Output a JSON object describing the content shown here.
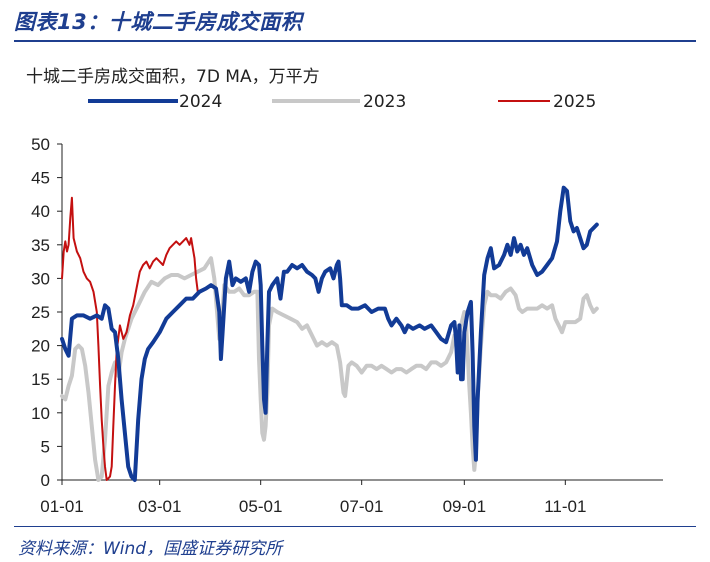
{
  "header": {
    "figure_title": "图表13：十城二手房成交面积"
  },
  "footer": {
    "source": "资料来源：Wind，国盛证券研究所"
  },
  "colors": {
    "s2024": "#123b96",
    "s2023": "#c8c8c8",
    "s2025": "#c41010",
    "brand": "#1f3f8f"
  },
  "chart_data": {
    "type": "line",
    "title": "十城二手房成交面积，7D MA，万平方",
    "xlabel": "",
    "ylabel": "",
    "ylim": [
      0,
      50
    ],
    "yticks": [
      0,
      5,
      10,
      15,
      20,
      25,
      30,
      35,
      40,
      45,
      50
    ],
    "xlim": [
      1,
      364
    ],
    "xticks": [
      {
        "day": 1,
        "label": "01-01"
      },
      {
        "day": 60,
        "label": "03-01"
      },
      {
        "day": 121,
        "label": "05-01"
      },
      {
        "day": 182,
        "label": "07-01"
      },
      {
        "day": 244,
        "label": "09-01"
      },
      {
        "day": 305,
        "label": "11-01"
      }
    ],
    "grid": false,
    "legend_position": "top",
    "series": [
      {
        "name": "2024",
        "color_key": "s2024",
        "points": [
          [
            1,
            21
          ],
          [
            3,
            19.5
          ],
          [
            5,
            18.5
          ],
          [
            7,
            24
          ],
          [
            10,
            24.5
          ],
          [
            14,
            24.5
          ],
          [
            18,
            24
          ],
          [
            22,
            24.5
          ],
          [
            25,
            24
          ],
          [
            27,
            26
          ],
          [
            29,
            25.5
          ],
          [
            31,
            22.5
          ],
          [
            33,
            22
          ],
          [
            35,
            18
          ],
          [
            37,
            12
          ],
          [
            39,
            7
          ],
          [
            41,
            2
          ],
          [
            43,
            0.5
          ],
          [
            45,
            0
          ],
          [
            47,
            9
          ],
          [
            49,
            15
          ],
          [
            51,
            18
          ],
          [
            53,
            19.5
          ],
          [
            56,
            20.5
          ],
          [
            60,
            22
          ],
          [
            64,
            24
          ],
          [
            68,
            25
          ],
          [
            72,
            26
          ],
          [
            76,
            27
          ],
          [
            80,
            27
          ],
          [
            84,
            28
          ],
          [
            88,
            28.5
          ],
          [
            91,
            29
          ],
          [
            94,
            28.5
          ],
          [
            96,
            25
          ],
          [
            97,
            18
          ],
          [
            98,
            22
          ],
          [
            100,
            30
          ],
          [
            102,
            32.5
          ],
          [
            104,
            29
          ],
          [
            106,
            30
          ],
          [
            109,
            29.5
          ],
          [
            112,
            30
          ],
          [
            114,
            28
          ],
          [
            116,
            31
          ],
          [
            118,
            32.5
          ],
          [
            120,
            32
          ],
          [
            121,
            29
          ],
          [
            122,
            20
          ],
          [
            123,
            12
          ],
          [
            124,
            10
          ],
          [
            125,
            20
          ],
          [
            126,
            28
          ],
          [
            128,
            29
          ],
          [
            131,
            30
          ],
          [
            133,
            27
          ],
          [
            135,
            31
          ],
          [
            137,
            31
          ],
          [
            140,
            32
          ],
          [
            143,
            31.5
          ],
          [
            146,
            32
          ],
          [
            149,
            31
          ],
          [
            152,
            30.5
          ],
          [
            154,
            30
          ],
          [
            156,
            28
          ],
          [
            158,
            30
          ],
          [
            160,
            31
          ],
          [
            163,
            31.5
          ],
          [
            165,
            30
          ],
          [
            167,
            32
          ],
          [
            168,
            32.5
          ],
          [
            169,
            30
          ],
          [
            170,
            26
          ],
          [
            173,
            26
          ],
          [
            176,
            25.5
          ],
          [
            180,
            25.5
          ],
          [
            184,
            26
          ],
          [
            188,
            25
          ],
          [
            192,
            25.5
          ],
          [
            196,
            25.5
          ],
          [
            198,
            24
          ],
          [
            200,
            23
          ],
          [
            203,
            24
          ],
          [
            206,
            23
          ],
          [
            208,
            22
          ],
          [
            210,
            23
          ],
          [
            213,
            22.5
          ],
          [
            217,
            23
          ],
          [
            220,
            22.5
          ],
          [
            224,
            23
          ],
          [
            227,
            22
          ],
          [
            230,
            21
          ],
          [
            233,
            20.5
          ],
          [
            236,
            23
          ],
          [
            238,
            23.5
          ],
          [
            239,
            21
          ],
          [
            240,
            16
          ],
          [
            241,
            23
          ],
          [
            242,
            15
          ],
          [
            243,
            15
          ],
          [
            244,
            22
          ],
          [
            246,
            25
          ],
          [
            248,
            26.5
          ],
          [
            249,
            19
          ],
          [
            250,
            8
          ],
          [
            251,
            3
          ],
          [
            252,
            12
          ],
          [
            254,
            22
          ],
          [
            256,
            30.5
          ],
          [
            258,
            33
          ],
          [
            260,
            34.5
          ],
          [
            262,
            31.5
          ],
          [
            265,
            32
          ],
          [
            268,
            33.5
          ],
          [
            270,
            35
          ],
          [
            272,
            33.5
          ],
          [
            274,
            36
          ],
          [
            276,
            34
          ],
          [
            278,
            35
          ],
          [
            280,
            33.5
          ],
          [
            282,
            34.5
          ],
          [
            285,
            32
          ],
          [
            288,
            30.5
          ],
          [
            291,
            31
          ],
          [
            294,
            32
          ],
          [
            297,
            33
          ],
          [
            300,
            35.5
          ],
          [
            302,
            40
          ],
          [
            304,
            43.5
          ],
          [
            306,
            43
          ],
          [
            308,
            38.5
          ],
          [
            310,
            37
          ],
          [
            312,
            37.5
          ],
          [
            314,
            36
          ],
          [
            316,
            34.5
          ],
          [
            318,
            35
          ],
          [
            320,
            37
          ],
          [
            322,
            37.5
          ],
          [
            324,
            38
          ]
        ]
      },
      {
        "name": "2023",
        "color_key": "s2023",
        "points": [
          [
            1,
            12.5
          ],
          [
            3,
            12
          ],
          [
            5,
            14
          ],
          [
            7,
            15.5
          ],
          [
            9,
            19.5
          ],
          [
            11,
            20
          ],
          [
            13,
            19.5
          ],
          [
            15,
            17
          ],
          [
            17,
            13
          ],
          [
            19,
            8
          ],
          [
            21,
            3
          ],
          [
            23,
            0
          ],
          [
            25,
            0.5
          ],
          [
            27,
            6
          ],
          [
            29,
            14
          ],
          [
            31,
            16
          ],
          [
            33,
            17.5
          ],
          [
            35,
            15.5
          ],
          [
            37,
            19
          ],
          [
            39,
            21
          ],
          [
            43,
            24
          ],
          [
            47,
            26
          ],
          [
            51,
            28
          ],
          [
            55,
            29.5
          ],
          [
            59,
            29
          ],
          [
            63,
            30
          ],
          [
            67,
            30.5
          ],
          [
            71,
            30.5
          ],
          [
            75,
            30
          ],
          [
            79,
            30.5
          ],
          [
            83,
            31
          ],
          [
            87,
            31.5
          ],
          [
            91,
            33
          ],
          [
            93,
            30
          ],
          [
            95,
            24
          ],
          [
            96,
            21
          ],
          [
            97,
            22
          ],
          [
            99,
            29
          ],
          [
            102,
            28
          ],
          [
            105,
            28
          ],
          [
            108,
            28.5
          ],
          [
            111,
            27.5
          ],
          [
            114,
            27.5
          ],
          [
            117,
            28
          ],
          [
            119,
            28
          ],
          [
            120,
            18
          ],
          [
            121,
            12
          ],
          [
            122,
            7
          ],
          [
            123,
            6
          ],
          [
            124,
            8
          ],
          [
            125,
            13
          ],
          [
            126,
            23
          ],
          [
            128,
            25.5
          ],
          [
            131,
            25
          ],
          [
            135,
            24.5
          ],
          [
            139,
            24
          ],
          [
            143,
            23.5
          ],
          [
            146,
            22.5
          ],
          [
            149,
            23
          ],
          [
            152,
            21.5
          ],
          [
            155,
            20
          ],
          [
            158,
            20.5
          ],
          [
            161,
            20
          ],
          [
            164,
            20.5
          ],
          [
            167,
            20
          ],
          [
            169,
            17.5
          ],
          [
            171,
            13
          ],
          [
            172,
            12.5
          ],
          [
            174,
            17
          ],
          [
            176,
            17.5
          ],
          [
            179,
            17
          ],
          [
            182,
            16
          ],
          [
            185,
            17
          ],
          [
            188,
            17
          ],
          [
            191,
            16.5
          ],
          [
            194,
            17
          ],
          [
            197,
            16.5
          ],
          [
            200,
            16
          ],
          [
            203,
            16.5
          ],
          [
            206,
            16.5
          ],
          [
            209,
            16
          ],
          [
            212,
            16.5
          ],
          [
            215,
            17
          ],
          [
            218,
            17
          ],
          [
            221,
            16.5
          ],
          [
            224,
            17.5
          ],
          [
            227,
            17.5
          ],
          [
            230,
            17
          ],
          [
            233,
            17.5
          ],
          [
            236,
            19
          ],
          [
            238,
            21.5
          ],
          [
            240,
            20.5
          ],
          [
            242,
            23
          ],
          [
            244,
            25
          ],
          [
            245,
            23.5
          ],
          [
            246,
            19
          ],
          [
            247,
            14
          ],
          [
            248,
            10
          ],
          [
            249,
            5
          ],
          [
            250,
            1.5
          ],
          [
            251,
            4
          ],
          [
            252,
            12
          ],
          [
            254,
            20
          ],
          [
            256,
            26
          ],
          [
            258,
            28
          ],
          [
            260,
            27.5
          ],
          [
            263,
            27.5
          ],
          [
            266,
            27
          ],
          [
            269,
            28
          ],
          [
            272,
            28.5
          ],
          [
            275,
            27.5
          ],
          [
            277,
            25.5
          ],
          [
            279,
            25
          ],
          [
            282,
            25.5
          ],
          [
            285,
            25.5
          ],
          [
            288,
            25.5
          ],
          [
            291,
            26
          ],
          [
            294,
            25.5
          ],
          [
            297,
            26
          ],
          [
            299,
            24
          ],
          [
            301,
            23
          ],
          [
            303,
            22
          ],
          [
            305,
            23.5
          ],
          [
            308,
            23.5
          ],
          [
            311,
            23.5
          ],
          [
            314,
            24
          ],
          [
            316,
            27
          ],
          [
            318,
            27.5
          ],
          [
            320,
            26
          ],
          [
            322,
            25
          ],
          [
            324,
            25.5
          ]
        ]
      },
      {
        "name": "2025",
        "color_key": "s2025",
        "points": [
          [
            1,
            30
          ],
          [
            2,
            34
          ],
          [
            3,
            35.5
          ],
          [
            4,
            34
          ],
          [
            5,
            35
          ],
          [
            6,
            39
          ],
          [
            7,
            42
          ],
          [
            8,
            36
          ],
          [
            10,
            34
          ],
          [
            12,
            33
          ],
          [
            14,
            31
          ],
          [
            16,
            30
          ],
          [
            18,
            29.5
          ],
          [
            20,
            28
          ],
          [
            22,
            25
          ],
          [
            23,
            20
          ],
          [
            24,
            14
          ],
          [
            25,
            9
          ],
          [
            26,
            5
          ],
          [
            27,
            2
          ],
          [
            28,
            0
          ],
          [
            30,
            0.5
          ],
          [
            31,
            2
          ],
          [
            32,
            8
          ],
          [
            33,
            14
          ],
          [
            34,
            19
          ],
          [
            36,
            23
          ],
          [
            38,
            21
          ],
          [
            40,
            22
          ],
          [
            42,
            24.5
          ],
          [
            44,
            26
          ],
          [
            46,
            28.5
          ],
          [
            48,
            31
          ],
          [
            50,
            32
          ],
          [
            52,
            32.5
          ],
          [
            54,
            31.5
          ],
          [
            56,
            32.5
          ],
          [
            58,
            33
          ],
          [
            60,
            32.5
          ],
          [
            62,
            32
          ],
          [
            64,
            33.5
          ],
          [
            66,
            34.5
          ],
          [
            68,
            35
          ],
          [
            70,
            35.5
          ],
          [
            72,
            35
          ],
          [
            74,
            35.5
          ],
          [
            76,
            36
          ],
          [
            78,
            35
          ],
          [
            79,
            36
          ],
          [
            80,
            34.5
          ],
          [
            81,
            33
          ],
          [
            82,
            30
          ],
          [
            83,
            28
          ]
        ]
      }
    ]
  }
}
